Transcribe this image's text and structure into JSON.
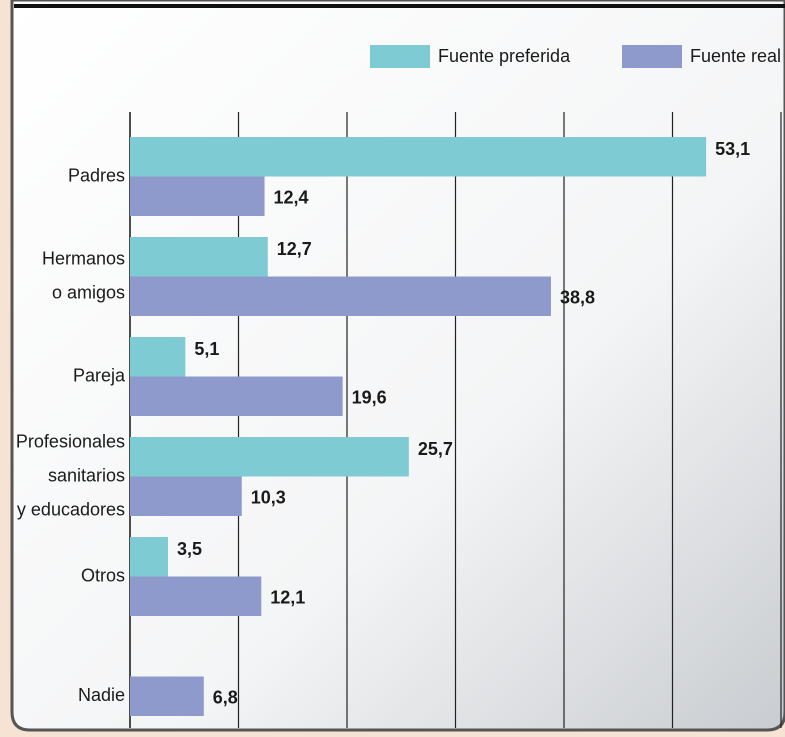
{
  "chart_data": {
    "type": "bar",
    "categories": [
      [
        "Padres"
      ],
      [
        "Hermanos",
        "o amigos"
      ],
      [
        "Pareja"
      ],
      [
        "Profesionales",
        "sanitarios",
        "y educadores"
      ],
      [
        "Otros"
      ],
      [
        "Nadie"
      ]
    ],
    "series": [
      {
        "name": "Fuente preferida",
        "color": "#7ecbd3",
        "values": [
          53.1,
          12.7,
          5.1,
          25.7,
          3.5,
          null
        ],
        "value_labels": [
          "53,1",
          "12,7",
          "5,1",
          "25,7",
          "3,5",
          null
        ]
      },
      {
        "name": "Fuente real",
        "color": "#8e9acb",
        "values": [
          12.4,
          38.8,
          19.6,
          10.3,
          12.1,
          6.8
        ],
        "value_labels": [
          "12,4",
          "38,8",
          "19,6",
          "10,3",
          "12,1",
          "6,8"
        ]
      }
    ],
    "xlim": [
      0,
      60
    ],
    "xticks": [
      0,
      10,
      20,
      30,
      40,
      50,
      60
    ],
    "grid": true
  }
}
